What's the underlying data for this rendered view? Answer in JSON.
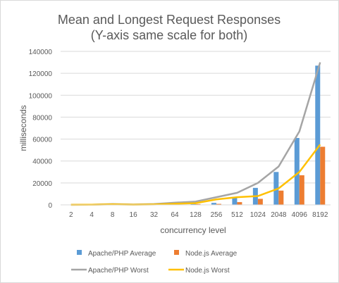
{
  "chart_data": {
    "type": "bar",
    "title": "Mean and Longest Request Responses",
    "subtitle": "(Y-axis same scale for both)",
    "xlabel": "concurrency level",
    "ylabel": "milliseconds",
    "ylim": [
      0,
      140000
    ],
    "yticks": [
      "0",
      "20000",
      "40000",
      "60000",
      "80000",
      "100000",
      "120000",
      "140000"
    ],
    "grid": true,
    "legend_position": "bottom",
    "categories": [
      "2",
      "4",
      "8",
      "16",
      "32",
      "64",
      "128",
      "256",
      "512",
      "1024",
      "2048",
      "4096",
      "8192"
    ],
    "series": [
      {
        "name": "Apache/PHP Average",
        "kind": "bar",
        "color": "#5B9BD5",
        "values": [
          20,
          40,
          80,
          150,
          300,
          600,
          1200,
          1800,
          6500,
          15500,
          30000,
          61000,
          127000
        ]
      },
      {
        "name": "Node.js Average",
        "kind": "bar",
        "color": "#ED7D31",
        "values": [
          15,
          30,
          60,
          100,
          200,
          400,
          700,
          900,
          2500,
          5500,
          13000,
          27000,
          53000
        ]
      },
      {
        "name": "Apache/PHP Worst",
        "kind": "line",
        "color": "#A5A5A5",
        "values": [
          100,
          200,
          700,
          300,
          700,
          2000,
          3000,
          7000,
          11000,
          20000,
          35000,
          67000,
          130000
        ]
      },
      {
        "name": "Node.js Worst",
        "kind": "line",
        "color": "#FFC000",
        "values": [
          80,
          150,
          500,
          200,
          400,
          1000,
          1500,
          5000,
          7000,
          8000,
          15000,
          30000,
          55000
        ]
      }
    ]
  }
}
